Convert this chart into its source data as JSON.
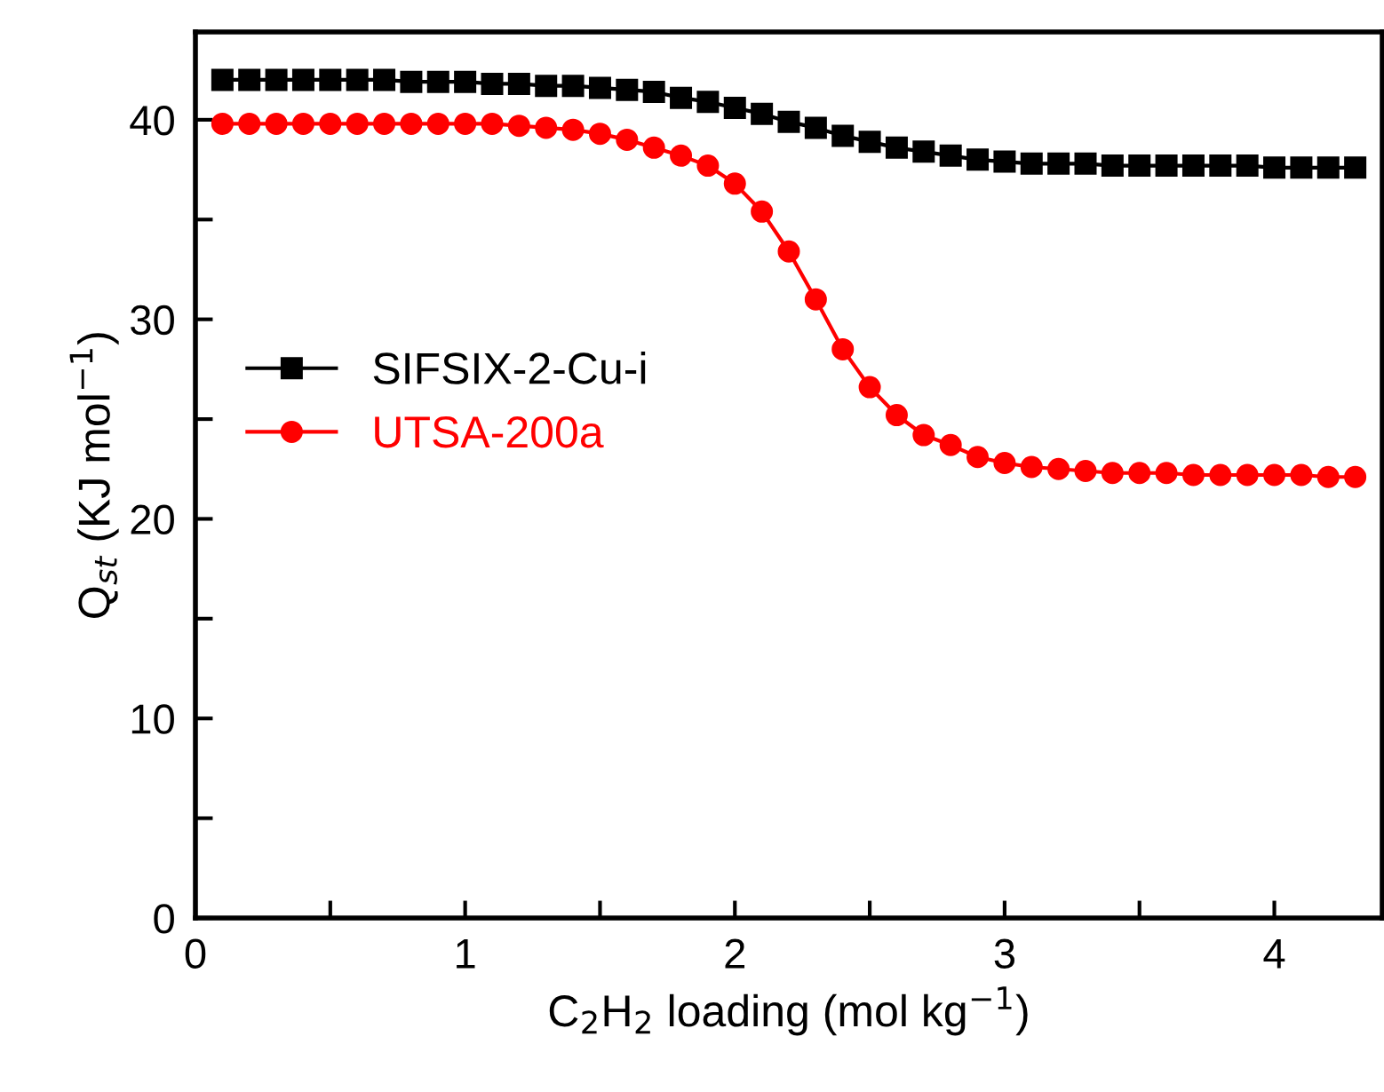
{
  "chart_data": {
    "type": "line",
    "xlabel": "C$_{2}$H$_{2}$ loading (mol kg$^{−1}$)",
    "ylabel": "Q$_{st}$ (KJ mol$^{−1}$)",
    "x": [
      0.1,
      0.2,
      0.3,
      0.4,
      0.5,
      0.6,
      0.7,
      0.8,
      0.9,
      1.0,
      1.1,
      1.2,
      1.3,
      1.4,
      1.5,
      1.6,
      1.7,
      1.8,
      1.9,
      2.0,
      2.1,
      2.2,
      2.3,
      2.4,
      2.5,
      2.6,
      2.7,
      2.8,
      2.9,
      3.0,
      3.1,
      3.2,
      3.3,
      3.4,
      3.5,
      3.6,
      3.7,
      3.8,
      3.9,
      4.0,
      4.1,
      4.2,
      4.3
    ],
    "series": [
      {
        "name": "SIFSIX-2-Cu-i",
        "color": "#000000",
        "marker": "square",
        "values": [
          42.0,
          42.0,
          42.0,
          42.0,
          42.0,
          42.0,
          42.0,
          41.9,
          41.9,
          41.9,
          41.8,
          41.8,
          41.7,
          41.7,
          41.6,
          41.5,
          41.4,
          41.1,
          40.9,
          40.6,
          40.3,
          39.9,
          39.6,
          39.2,
          38.9,
          38.6,
          38.4,
          38.2,
          38.0,
          37.9,
          37.8,
          37.8,
          37.8,
          37.7,
          37.7,
          37.7,
          37.7,
          37.7,
          37.7,
          37.6,
          37.6,
          37.6,
          37.6
        ]
      },
      {
        "name": "UTSA-200a",
        "color": "#ff0000",
        "marker": "circle",
        "values": [
          39.8,
          39.8,
          39.8,
          39.8,
          39.8,
          39.8,
          39.8,
          39.8,
          39.8,
          39.8,
          39.8,
          39.7,
          39.6,
          39.5,
          39.3,
          39.0,
          38.6,
          38.2,
          37.7,
          36.8,
          35.4,
          33.4,
          31.0,
          28.5,
          26.6,
          25.2,
          24.2,
          23.7,
          23.1,
          22.8,
          22.6,
          22.5,
          22.4,
          22.3,
          22.3,
          22.3,
          22.2,
          22.2,
          22.2,
          22.2,
          22.2,
          22.1,
          22.1
        ]
      }
    ],
    "xlim": [
      0,
      4.4
    ],
    "xticks": [
      0,
      {
        "value": 0.5,
        "label": null
      },
      1,
      {
        "value": 1.5,
        "label": null
      },
      2,
      {
        "value": 2.5,
        "label": null
      },
      3,
      {
        "value": 3.5,
        "label": null
      },
      4
    ],
    "ylim": [
      0,
      44.4
    ],
    "yticks": [
      0,
      {
        "value": 5,
        "label": null
      },
      10,
      {
        "value": 15,
        "label": null
      },
      20,
      {
        "value": 25,
        "label": null
      },
      30,
      {
        "value": 35,
        "label": null
      },
      40
    ],
    "grid": false,
    "legend": "center left",
    "line_style": "solid"
  }
}
